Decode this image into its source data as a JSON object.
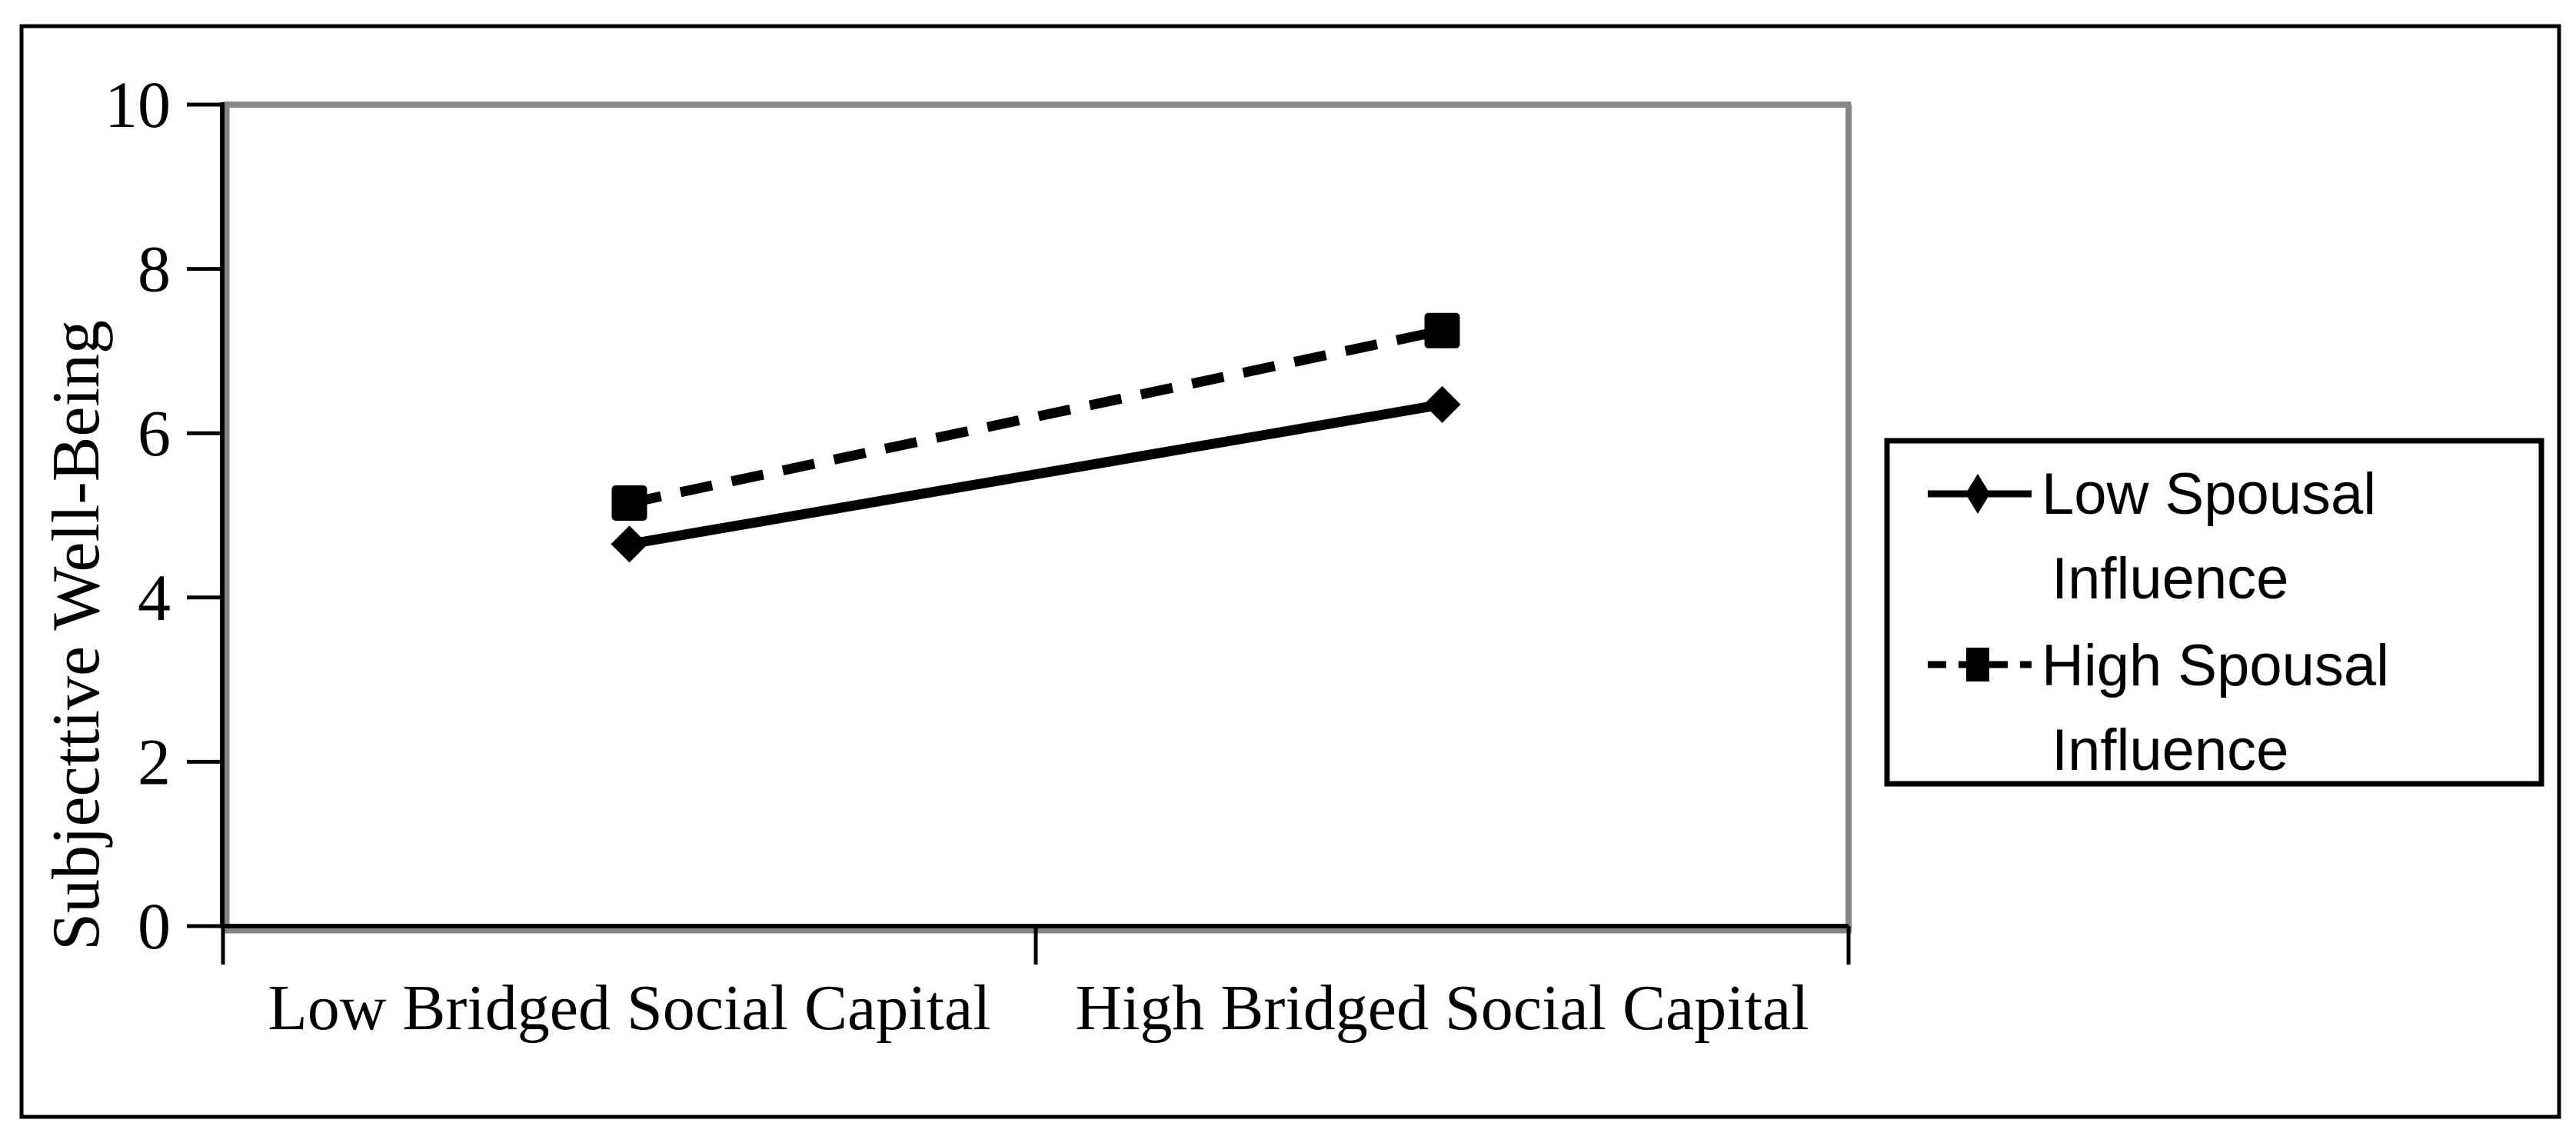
{
  "figure": {
    "background": "#ffffff",
    "border_color": "#000000"
  },
  "chart_data": {
    "type": "line",
    "title": "",
    "categories": [
      "Low Bridged Social Capital",
      "High Bridged Social Capital"
    ],
    "series": [
      {
        "name": "Low Spousal Influence",
        "values": [
          4.65,
          6.35
        ],
        "line_style": "solid",
        "marker": "diamond",
        "color": "#000000"
      },
      {
        "name": "High Spousal Influence",
        "values": [
          5.15,
          7.25
        ],
        "line_style": "dashed",
        "marker": "square",
        "color": "#000000"
      }
    ],
    "xlabel": "",
    "ylabel": "Subjecttive Well-Being",
    "ylim": [
      0,
      10
    ],
    "yticks": [
      0,
      2,
      4,
      6,
      8,
      10
    ],
    "grid": false,
    "legend_position": "right",
    "plot_border_color": "#858585",
    "axis_color": "#000000"
  },
  "legend": {
    "entries": [
      {
        "line1": "Low Spousal",
        "line2": "Influence"
      },
      {
        "line1": "High Spousal",
        "line2": "Influence"
      }
    ]
  }
}
